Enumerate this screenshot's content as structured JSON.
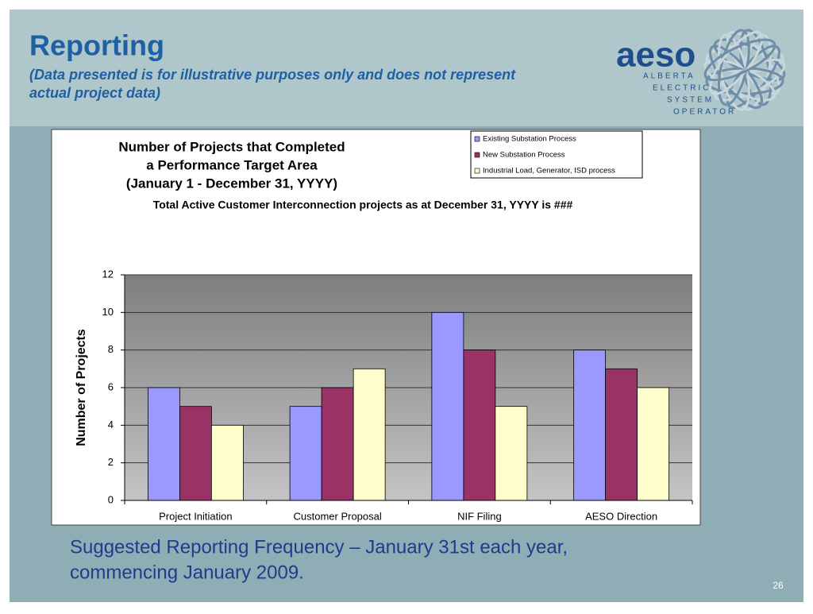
{
  "slide": {
    "title": "Reporting",
    "subtitle": [
      "(Data presented is for illustrative purposes only and does not represent",
      "actual project data)"
    ],
    "logo": {
      "name": "aeso",
      "lines": [
        "ALBERTA",
        "ELECTRIC",
        "SYSTEM",
        "OPERATOR"
      ]
    },
    "footer": [
      "Suggested Reporting Frequency – January 31st each year,",
      "commencing January 2009."
    ],
    "page_number": "26"
  },
  "chart_data": {
    "type": "bar",
    "title": [
      "Number of Projects that Completed",
      "a Performance Target Area",
      "(January 1 - December 31, YYYY)"
    ],
    "subtitle": "Total Active Customer Interconnection projects as at December 31, YYYY is ###",
    "y_label": "Number of Projects",
    "categories": [
      "Project Initiation",
      "Customer Proposal",
      "NIF Filing",
      "AESO Direction"
    ],
    "series": [
      {
        "name": "Existing Substation Process",
        "color": "#9999ff",
        "values": [
          6,
          5,
          10,
          8
        ]
      },
      {
        "name": "New Substation Process",
        "color": "#993366",
        "values": [
          5,
          6,
          8,
          7
        ]
      },
      {
        "name": "Industrial Load, Generator, ISD process",
        "color": "#ffffcc",
        "values": [
          4,
          7,
          5,
          6
        ]
      }
    ],
    "ylim": [
      0,
      12
    ],
    "yticks": [
      0,
      2,
      4,
      6,
      8,
      10,
      12
    ],
    "grid": true,
    "legend": "top-right"
  }
}
